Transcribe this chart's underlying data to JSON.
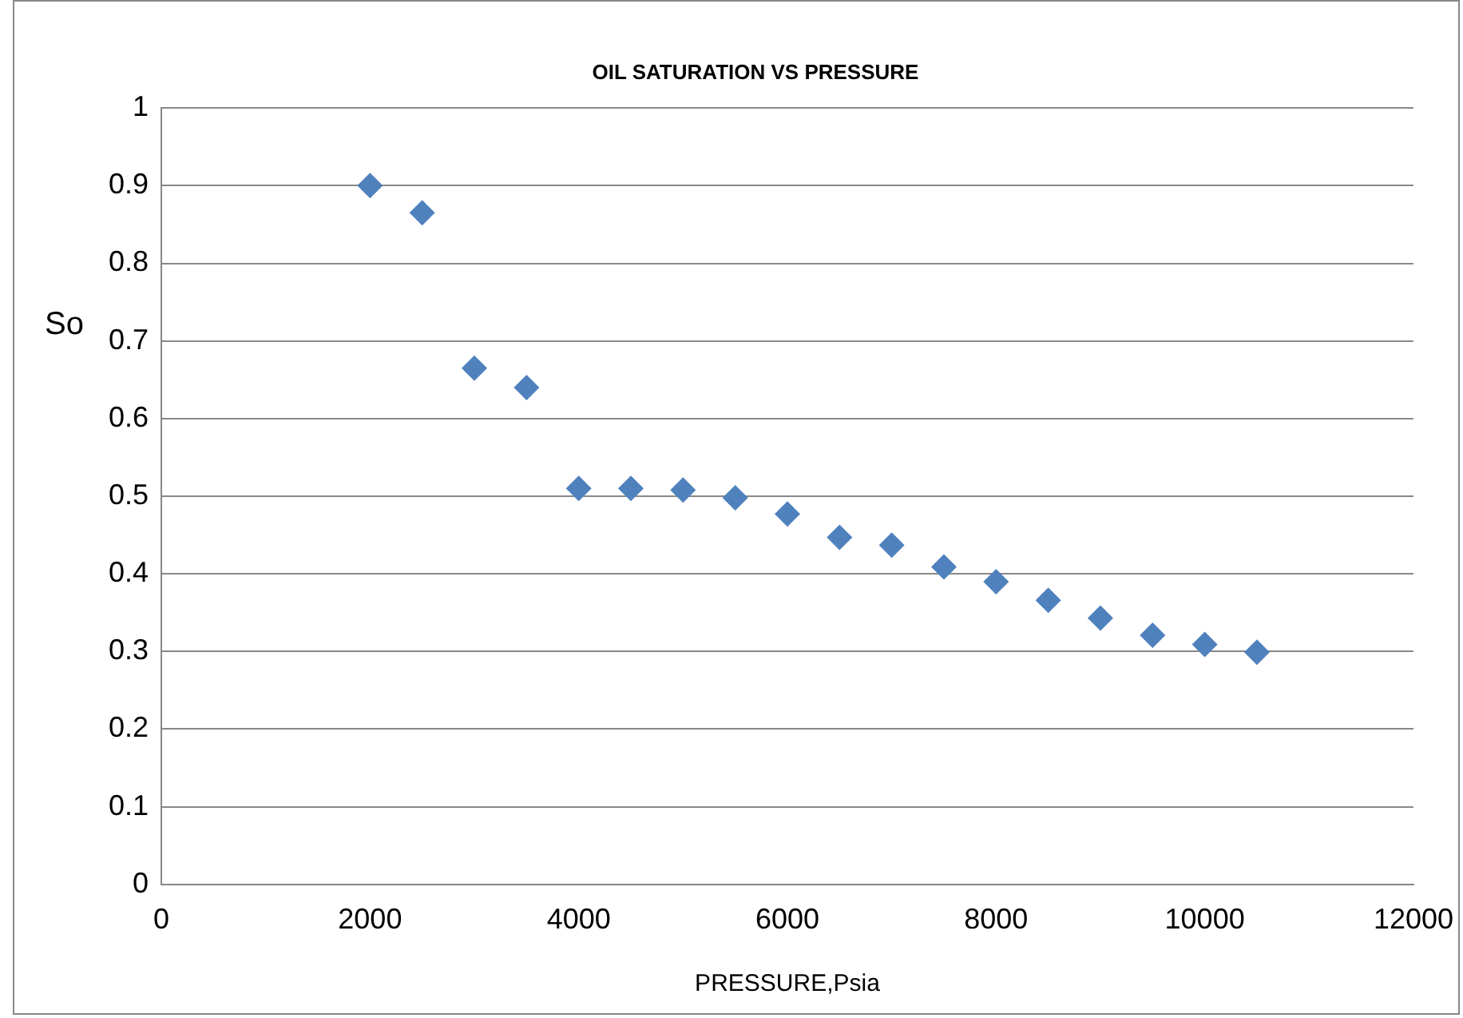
{
  "chart_data": {
    "type": "scatter",
    "title": "OIL SATURATION VS PRESSURE",
    "xlabel": "PRESSURE,Psia",
    "ylabel": "So",
    "x": [
      2000,
      2500,
      3000,
      3500,
      4000,
      4500,
      5000,
      5500,
      6000,
      6500,
      7000,
      7500,
      8000,
      8500,
      9000,
      9500,
      10000,
      10500
    ],
    "series": [
      {
        "color": "#4f81bd",
        "values": [
          0.9,
          0.865,
          0.665,
          0.64,
          0.51,
          0.51,
          0.508,
          0.498,
          0.477,
          0.447,
          0.437,
          0.409,
          0.39,
          0.366,
          0.343,
          0.321,
          0.309,
          0.299
        ]
      }
    ],
    "xlim": [
      0,
      12000
    ],
    "xticks": [
      0,
      2000,
      4000,
      6000,
      8000,
      10000,
      12000
    ],
    "ylim": [
      0,
      1
    ],
    "yticks": [
      0,
      0.1,
      0.2,
      0.3,
      0.4,
      0.5,
      0.6,
      0.7,
      0.8,
      0.9,
      1
    ],
    "grid": "y",
    "legend": false,
    "marker": "diamond"
  }
}
